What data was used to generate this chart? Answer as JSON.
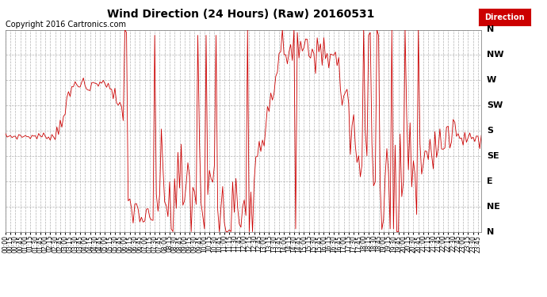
{
  "title": "Wind Direction (24 Hours) (Raw) 20160531",
  "copyright": "Copyright 2016 Cartronics.com",
  "legend_label": "Direction",
  "legend_bg": "#cc0000",
  "legend_text_color": "#ffffff",
  "line_color_red": "#cc0000",
  "bg_color": "#ffffff",
  "plot_bg_color": "#ffffff",
  "grid_color": "#aaaaaa",
  "ytick_labels": [
    "N",
    "NE",
    "E",
    "SE",
    "S",
    "SW",
    "W",
    "NW",
    "N"
  ],
  "ytick_values": [
    0,
    45,
    90,
    135,
    180,
    225,
    270,
    315,
    360
  ],
  "ylim": [
    0,
    360
  ],
  "title_fontsize": 10,
  "copyright_fontsize": 7,
  "xtick_fontsize": 5.5,
  "ytick_fontsize": 8
}
